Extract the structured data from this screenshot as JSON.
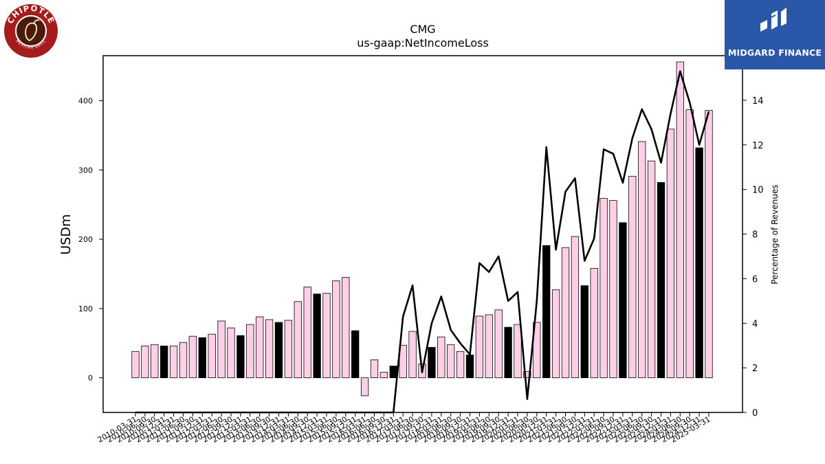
{
  "title": "CMG",
  "subtitle": "us-gaap:NetIncomeLoss",
  "brand_left": {
    "ring_top": "CHIPOTLE",
    "ring_bottom": "MEXICAN GRILL",
    "color": "#a51c1c"
  },
  "brand_right": {
    "name": "MIDGARD FINANCE",
    "color": "#2b57a8"
  },
  "chart_data": {
    "type": "bar",
    "ylabel": "USDm",
    "y2label": "Percentage of Revenues",
    "ylim": [
      -50,
      465
    ],
    "y2lim": [
      0,
      16.0
    ],
    "yticks": [
      0,
      100,
      200,
      300,
      400
    ],
    "y2ticks": [
      0,
      2,
      4,
      6,
      8,
      10,
      12,
      14
    ],
    "bar_colors": {
      "quarter": "#ffcfe8",
      "annual": "#000000"
    },
    "line_color": "#000000",
    "categories": [
      "2010-03-31",
      "2010-06-30",
      "2010-09-30",
      "2010-12-31",
      "2011-03-31",
      "2011-06-30",
      "2011-09-30",
      "2011-12-31",
      "2012-03-31",
      "2012-06-30",
      "2012-09-30",
      "2012-12-31",
      "2013-03-31",
      "2013-06-30",
      "2013-09-30",
      "2013-12-31",
      "2014-03-31",
      "2014-06-30",
      "2014-09-30",
      "2014-12-31",
      "2015-03-31",
      "2015-06-30",
      "2015-09-30",
      "2015-12-31",
      "2016-03-31",
      "2016-06-30",
      "2016-09-30",
      "2016-12-31",
      "2017-03-31",
      "2017-06-30",
      "2017-09-30",
      "2017-12-31",
      "2018-03-31",
      "2018-06-30",
      "2018-09-30",
      "2018-12-31",
      "2019-03-31",
      "2019-06-30",
      "2019-09-30",
      "2019-12-31",
      "2020-03-31",
      "2020-06-30",
      "2020-09-30",
      "2020-12-31",
      "2021-03-31",
      "2021-06-30",
      "2021-09-30",
      "2021-12-31",
      "2022-03-31",
      "2022-06-30",
      "2022-09-30",
      "2022-12-31",
      "2023-03-31",
      "2023-06-30",
      "2023-09-30",
      "2023-12-31",
      "2024-03-31",
      "2024-06-30",
      "2024-09-30",
      "2024-12-31",
      "2025-03-31"
    ],
    "series": [
      {
        "kind": "bar",
        "values": [
          38,
          46,
          48,
          46,
          46,
          51,
          60,
          58,
          63,
          82,
          72,
          61,
          77,
          88,
          84,
          80,
          83,
          110,
          131,
          121,
          122,
          140,
          145,
          68,
          -26,
          26,
          8,
          17,
          47,
          67,
          20,
          44,
          59,
          48,
          38,
          33,
          89,
          91,
          98,
          73,
          77,
          9,
          80,
          191,
          127,
          188,
          204,
          133,
          158,
          259,
          256,
          224,
          291,
          341,
          313,
          282,
          359,
          456,
          387,
          332,
          386
        ],
        "annual": [
          3,
          7,
          11,
          15,
          19,
          23,
          27,
          31,
          35,
          39,
          43,
          47,
          51,
          55,
          59
        ]
      },
      {
        "kind": "line",
        "axis": "right",
        "values": [
          0,
          0,
          0,
          0,
          0,
          0,
          0,
          0,
          0,
          0,
          0,
          0,
          0,
          0,
          0,
          0,
          0,
          0,
          0,
          0,
          0,
          0,
          0,
          0,
          0,
          0,
          0,
          0,
          4.3,
          5.7,
          1.8,
          4.0,
          5.2,
          3.7,
          3.1,
          2.6,
          6.7,
          6.3,
          7.0,
          5.0,
          5.4,
          0.6,
          5.0,
          11.9,
          7.3,
          9.9,
          10.5,
          6.8,
          7.8,
          11.8,
          11.6,
          10.3,
          12.3,
          13.6,
          12.7,
          11.2,
          13.4,
          15.3,
          13.9,
          12.0,
          13.5
        ]
      }
    ]
  }
}
